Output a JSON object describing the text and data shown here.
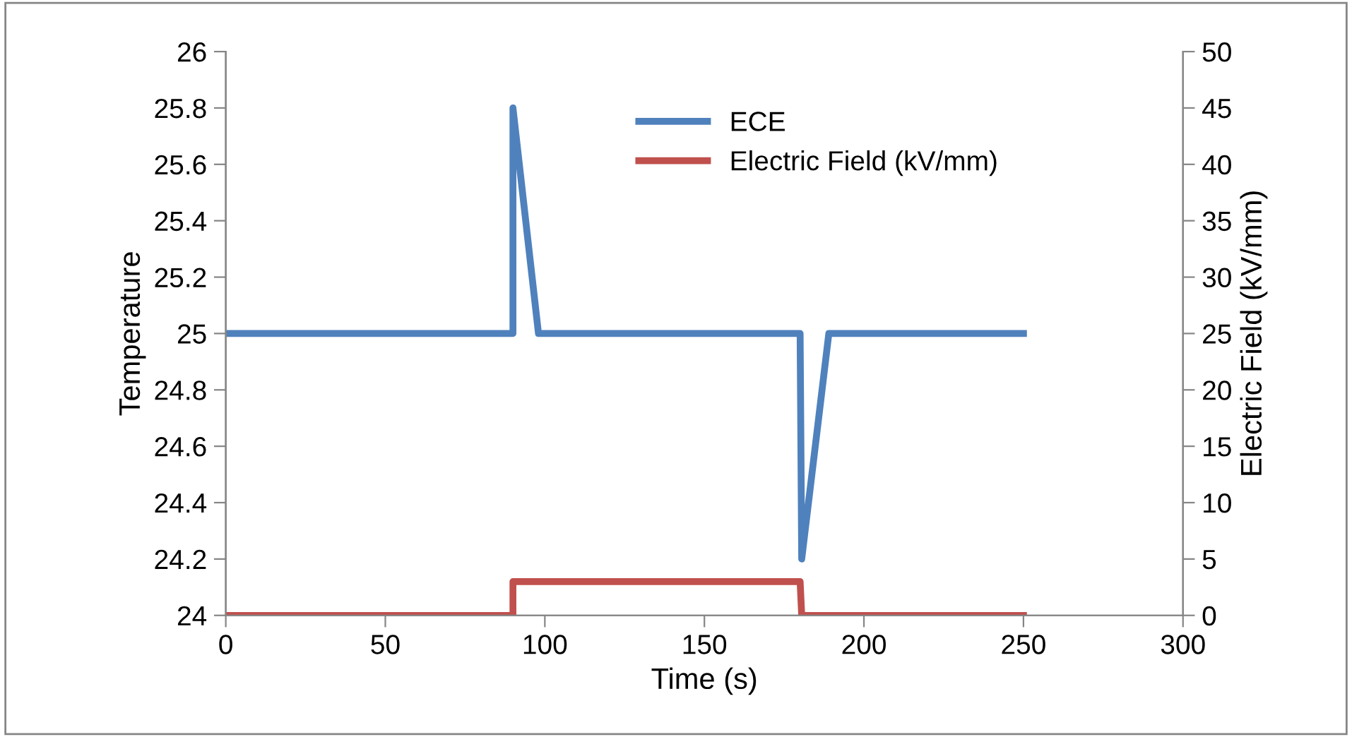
{
  "chart_data": {
    "type": "line",
    "xlabel": "Time (s)",
    "ylabel": "Temperature",
    "y2label": "Electric Field (kV/mm)",
    "xlim": [
      0,
      300
    ],
    "xticks": [
      0,
      50,
      100,
      150,
      200,
      250,
      300
    ],
    "ylim": [
      24,
      26
    ],
    "yticks": [
      24,
      {
        "value": 24.2,
        "label": "24.2"
      },
      {
        "value": 24.4,
        "label": "24.4"
      },
      {
        "value": 24.6,
        "label": "24.6"
      },
      {
        "value": 24.8,
        "label": "24.8"
      },
      25,
      {
        "value": 25.2,
        "label": "25.2"
      },
      {
        "value": 25.4,
        "label": "25.4"
      },
      {
        "value": 25.6,
        "label": "25.6"
      },
      {
        "value": 25.8,
        "label": "25.8"
      },
      26
    ],
    "y2lim": [
      0,
      50
    ],
    "y2ticks": [
      0,
      5,
      10,
      15,
      20,
      25,
      30,
      35,
      40,
      45,
      50
    ],
    "series": [
      {
        "name": "ECE",
        "color": "#4f81bd",
        "x": [
          0,
          90,
          90,
          98,
          180,
          180.5,
          189,
          250
        ],
        "values": [
          25,
          25,
          25.8,
          25,
          25,
          24.2,
          25,
          25
        ]
      },
      {
        "name": "Electric Field (kV/mm)",
        "color": "#c0504d",
        "axis": "y2",
        "x": [
          0,
          90,
          90,
          180,
          180.5,
          250
        ],
        "values": [
          0,
          0,
          3,
          3,
          0,
          0
        ]
      }
    ],
    "legend": "top",
    "grid": false,
    "marker": "none",
    "line_style": "solid"
  }
}
